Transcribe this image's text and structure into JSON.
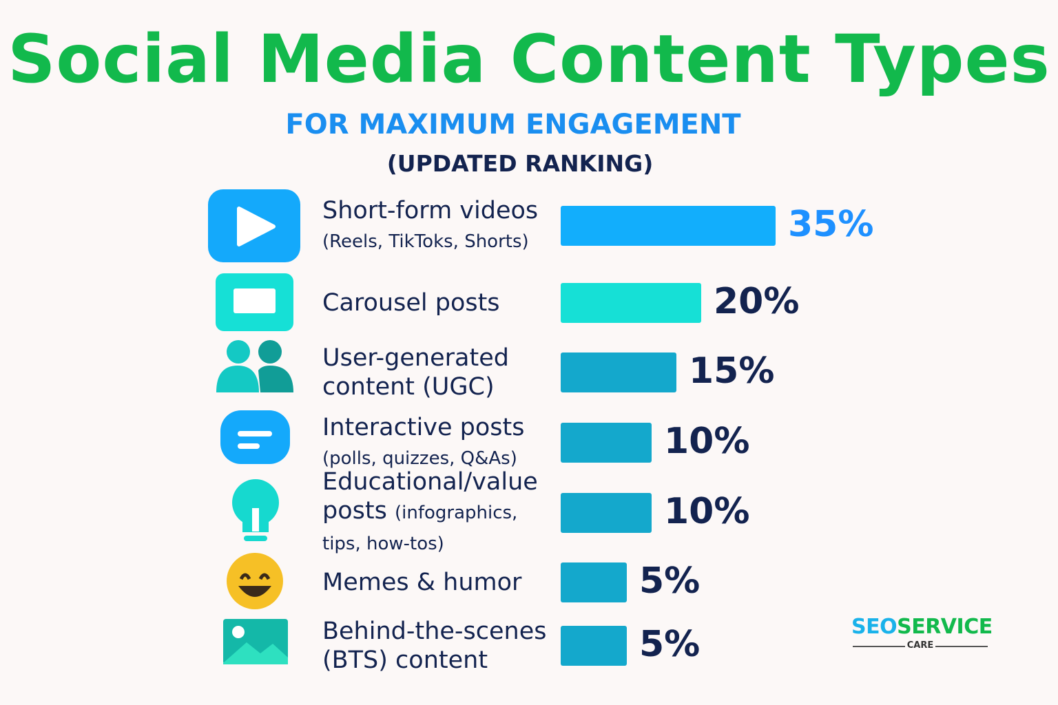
{
  "title": "Social Media Content Types",
  "subtitle": "FOR MAXIMUM ENGAGEMENT",
  "subtitle2": "(UPDATED RANKING)",
  "chart_data": {
    "type": "bar",
    "orientation": "horizontal",
    "title": "Social Media Content Types",
    "categories": [
      "Short-form videos (Reels, TikToks, Shorts)",
      "Carousel posts",
      "User-generated content (UGC)",
      "Interactive posts (polls, quizzes, Q&As)",
      "Educational/value posts (infographics, tips, how-tos)",
      "Memes & humor",
      "Behind-the-scenes (BTS) content"
    ],
    "values": [
      35,
      20,
      15,
      10,
      10,
      5,
      5
    ],
    "unit": "%",
    "grid": false,
    "rows": [
      {
        "main": "Short-form videos",
        "sub": "(Reels, TikToks, Shorts)",
        "value_label": "35%",
        "icon": "play-icon",
        "color": "#12aefc",
        "label_color": "#1e90ff"
      },
      {
        "main": "Carousel posts",
        "sub": "",
        "value_label": "20%",
        "icon": "carousel-icon",
        "color": "#16e0d6",
        "label_color": "#13234f"
      },
      {
        "main": "User-generated content (UGC)",
        "sub": "",
        "value_label": "15%",
        "icon": "users-icon",
        "color": "#14a8cc",
        "label_color": "#13234f"
      },
      {
        "main": "Interactive posts",
        "sub": "(polls, quizzes, Q&As)",
        "value_label": "10%",
        "icon": "chat-icon",
        "color": "#14a8cc",
        "label_color": "#13234f"
      },
      {
        "main": "Educational/value posts",
        "sub": "(infographics, tips, how-tos)",
        "value_label": "10%",
        "icon": "lightbulb-icon",
        "color": "#14a8cc",
        "label_color": "#13234f"
      },
      {
        "main": "Memes & humor",
        "sub": "",
        "value_label": "5%",
        "icon": "smiley-icon",
        "color": "#14a8cc",
        "label_color": "#13234f"
      },
      {
        "main": "Behind-the-scenes (BTS) content",
        "sub": "",
        "value_label": "5%",
        "icon": "image-icon",
        "color": "#14a8cc",
        "label_color": "#13234f"
      }
    ]
  },
  "logo": {
    "seo": "SEO",
    "service": "SERVICE",
    "care": "CARE"
  }
}
